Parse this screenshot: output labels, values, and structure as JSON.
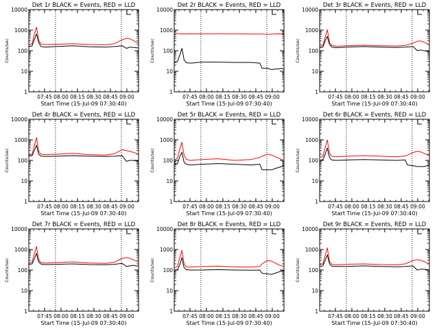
{
  "figure": {
    "start_time_label": "Start Time (15-Jul-09 07:30:40)",
    "ylabel": "Counts/sec",
    "x_tick_labels": [
      "07:45",
      "08:00",
      "08:15",
      "08:30",
      "08:45",
      "09:00"
    ],
    "y_tick_labels": [
      "1",
      "10",
      "100",
      "1000",
      "10000"
    ],
    "colors": {
      "events": "#000000",
      "lld": "#ff0000",
      "axis": "#000000"
    }
  },
  "chart_data": [
    {
      "type": "line",
      "title": "Det 1r BLACK = Events, RED = LLD",
      "xlabel": "Start Time (15-Jul-09 07:30:40)",
      "ylabel": "Counts/sec",
      "x_unit": "minutes after 07:30:40",
      "xlim": [
        0,
        100
      ],
      "ylim": [
        1,
        10000
      ],
      "yscale": "log",
      "markers": [
        {
          "type": "dotted-line",
          "x": 24.3
        },
        {
          "type": "dotted-line",
          "x": 84.3
        },
        {
          "type": "bracket",
          "x": 89.3
        }
      ],
      "x": [
        0,
        3,
        5,
        7,
        8,
        9,
        11,
        15,
        25,
        40,
        55,
        70,
        78,
        85,
        89,
        92,
        95,
        98,
        100
      ],
      "series": [
        {
          "name": "Events",
          "color": "#000000",
          "values": [
            160,
            170,
            350,
            650,
            420,
            250,
            160,
            150,
            160,
            175,
            155,
            150,
            160,
            175,
            130,
            150,
            145,
            140,
            135
          ]
        },
        {
          "name": "LLD",
          "color": "#ff0000",
          "values": [
            200,
            220,
            600,
            1400,
            700,
            320,
            210,
            200,
            205,
            220,
            200,
            195,
            220,
            340,
            400,
            380,
            320,
            260,
            230
          ]
        }
      ]
    },
    {
      "type": "line",
      "title": "Det 2r BLACK = Events, RED = LLD",
      "xlabel": "Start Time (15-Jul-09 07:30:40)",
      "ylabel": "Counts/sec",
      "x_unit": "minutes after 07:30:40",
      "xlim": [
        0,
        100
      ],
      "ylim": [
        1,
        10000
      ],
      "yscale": "log",
      "markers": [
        {
          "type": "dotted-line",
          "x": 24.3
        },
        {
          "type": "dotted-line",
          "x": 84.3
        },
        {
          "type": "bracket",
          "x": 89.3
        }
      ],
      "x": [
        0,
        3,
        5,
        7,
        8,
        9,
        11,
        15,
        25,
        40,
        55,
        70,
        78,
        80,
        85,
        89,
        92,
        95,
        98,
        100
      ],
      "series": [
        {
          "name": "Events",
          "color": "#000000",
          "values": [
            25,
            30,
            60,
            130,
            70,
            35,
            26,
            25,
            28,
            28,
            27,
            27,
            25,
            14,
            14,
            12,
            13,
            13,
            14,
            12
          ]
        },
        {
          "name": "LLD",
          "color": "#ff0000",
          "values": [
            700,
            680,
            660,
            660,
            660,
            650,
            660,
            670,
            660,
            670,
            660,
            650,
            650,
            650,
            620,
            640,
            650,
            660,
            650,
            640
          ]
        }
      ]
    },
    {
      "type": "line",
      "title": "Det 3r BLACK = Events, RED = LLD",
      "xlabel": "Start Time (15-Jul-09 07:30:40)",
      "ylabel": "Counts/sec",
      "x_unit": "minutes after 07:30:40",
      "xlim": [
        0,
        100
      ],
      "ylim": [
        1,
        10000
      ],
      "yscale": "log",
      "markers": [
        {
          "type": "dotted-line",
          "x": 24.3
        },
        {
          "type": "dotted-line",
          "x": 84.3
        },
        {
          "type": "bracket",
          "x": 89.3
        }
      ],
      "x": [
        0,
        3,
        5,
        7,
        8,
        9,
        11,
        15,
        25,
        40,
        55,
        70,
        78,
        85,
        89,
        92,
        95,
        98,
        100
      ],
      "series": [
        {
          "name": "Events",
          "color": "#000000",
          "values": [
            140,
            150,
            300,
            500,
            300,
            200,
            150,
            140,
            150,
            160,
            150,
            145,
            150,
            160,
            100,
            110,
            100,
            95,
            90
          ]
        },
        {
          "name": "LLD",
          "color": "#ff0000",
          "values": [
            160,
            180,
            450,
            1050,
            500,
            260,
            180,
            165,
            175,
            185,
            175,
            170,
            180,
            230,
            290,
            300,
            260,
            220,
            200
          ]
        }
      ]
    },
    {
      "type": "line",
      "title": "Det 4r BLACK = Events, RED = LLD",
      "xlabel": "Start Time (15-Jul-09 07:30:40)",
      "ylabel": "Counts/sec",
      "x_unit": "minutes after 07:30:40",
      "xlim": [
        0,
        100
      ],
      "ylim": [
        1,
        10000
      ],
      "yscale": "log",
      "markers": [
        {
          "type": "dotted-line",
          "x": 24.3
        },
        {
          "type": "dotted-line",
          "x": 84.3
        },
        {
          "type": "bracket",
          "x": 89.3
        }
      ],
      "x": [
        0,
        3,
        5,
        7,
        8,
        9,
        11,
        15,
        25,
        40,
        55,
        70,
        78,
        85,
        89,
        92,
        95,
        98,
        100
      ],
      "series": [
        {
          "name": "Events",
          "color": "#000000",
          "values": [
            160,
            170,
            300,
            550,
            320,
            200,
            160,
            155,
            160,
            170,
            160,
            155,
            160,
            170,
            90,
            100,
            100,
            95,
            90
          ]
        },
        {
          "name": "LLD",
          "color": "#ff0000",
          "values": [
            180,
            200,
            500,
            1300,
            600,
            280,
            200,
            190,
            200,
            220,
            190,
            180,
            210,
            330,
            300,
            280,
            250,
            220,
            200
          ]
        }
      ]
    },
    {
      "type": "line",
      "title": "Det 5r BLACK = Events, RED = LLD",
      "xlabel": "Start Time (15-Jul-09 07:30:40)",
      "ylabel": "Counts/sec",
      "x_unit": "minutes after 07:30:40",
      "xlim": [
        0,
        100
      ],
      "ylim": [
        1,
        10000
      ],
      "yscale": "log",
      "markers": [
        {
          "type": "dotted-line",
          "x": 24.3
        },
        {
          "type": "dotted-line",
          "x": 84.3
        },
        {
          "type": "bracket",
          "x": 89.3
        }
      ],
      "x": [
        0,
        3,
        5,
        7,
        8,
        9,
        11,
        15,
        25,
        40,
        55,
        70,
        78,
        80,
        85,
        89,
        92,
        95,
        98,
        100
      ],
      "series": [
        {
          "name": "Events",
          "color": "#000000",
          "values": [
            60,
            70,
            150,
            250,
            140,
            80,
            65,
            60,
            65,
            70,
            65,
            60,
            65,
            35,
            35,
            35,
            40,
            45,
            50,
            60
          ]
        },
        {
          "name": "LLD",
          "color": "#ff0000",
          "values": [
            100,
            130,
            350,
            750,
            350,
            180,
            110,
            100,
            110,
            120,
            100,
            110,
            140,
            160,
            200,
            180,
            150,
            130,
            110,
            100
          ]
        }
      ]
    },
    {
      "type": "line",
      "title": "Det 6r BLACK = Events, RED = LLD",
      "xlabel": "Start Time (15-Jul-09 07:30:40)",
      "ylabel": "Counts/sec",
      "x_unit": "minutes after 07:30:40",
      "xlim": [
        0,
        100
      ],
      "ylim": [
        1,
        10000
      ],
      "yscale": "log",
      "markers": [
        {
          "type": "dotted-line",
          "x": 24.3
        },
        {
          "type": "dotted-line",
          "x": 84.3
        },
        {
          "type": "bracket",
          "x": 89.3
        }
      ],
      "x": [
        0,
        3,
        5,
        7,
        8,
        9,
        11,
        15,
        25,
        40,
        55,
        70,
        78,
        80,
        85,
        89,
        92,
        95,
        98,
        100
      ],
      "series": [
        {
          "name": "Events",
          "color": "#000000",
          "values": [
            100,
            110,
            200,
            400,
            220,
            140,
            105,
            100,
            105,
            110,
            105,
            100,
            105,
            60,
            55,
            50,
            50,
            50,
            55,
            60
          ]
        },
        {
          "name": "LLD",
          "color": "#ff0000",
          "values": [
            140,
            160,
            400,
            1000,
            450,
            220,
            160,
            150,
            160,
            170,
            160,
            150,
            165,
            180,
            240,
            280,
            260,
            220,
            190,
            160
          ]
        }
      ]
    },
    {
      "type": "line",
      "title": "Det 7r BLACK = Events, RED = LLD",
      "xlabel": "Start Time (15-Jul-09 07:30:40)",
      "ylabel": "Counts/sec",
      "x_unit": "minutes after 07:30:40",
      "xlim": [
        0,
        100
      ],
      "ylim": [
        1,
        10000
      ],
      "yscale": "log",
      "markers": [
        {
          "type": "dotted-line",
          "x": 24.3
        },
        {
          "type": "dotted-line",
          "x": 84.3
        },
        {
          "type": "bracket",
          "x": 89.3
        }
      ],
      "x": [
        0,
        3,
        5,
        7,
        8,
        9,
        11,
        15,
        25,
        40,
        55,
        70,
        78,
        85,
        89,
        92,
        95,
        98,
        100
      ],
      "series": [
        {
          "name": "Events",
          "color": "#000000",
          "values": [
            190,
            200,
            350,
            650,
            380,
            250,
            195,
            185,
            190,
            200,
            185,
            180,
            190,
            210,
            150,
            160,
            170,
            160,
            150
          ]
        },
        {
          "name": "LLD",
          "color": "#ff0000",
          "values": [
            220,
            250,
            600,
            1400,
            650,
            320,
            230,
            220,
            230,
            250,
            220,
            210,
            240,
            370,
            400,
            380,
            320,
            270,
            240
          ]
        }
      ]
    },
    {
      "type": "line",
      "title": "Det 8r BLACK = Events, RED = LLD",
      "xlabel": "Start Time (15-Jul-09 07:30:40)",
      "ylabel": "Counts/sec",
      "x_unit": "minutes after 07:30:40",
      "xlim": [
        0,
        100
      ],
      "ylim": [
        1,
        10000
      ],
      "yscale": "log",
      "markers": [
        {
          "type": "dotted-line",
          "x": 24.3
        },
        {
          "type": "dotted-line",
          "x": 84.3
        },
        {
          "type": "bracket",
          "x": 89.3
        }
      ],
      "x": [
        0,
        3,
        5,
        7,
        8,
        9,
        11,
        15,
        25,
        40,
        55,
        70,
        78,
        80,
        85,
        89,
        92,
        95,
        98,
        100
      ],
      "series": [
        {
          "name": "Events",
          "color": "#000000",
          "values": [
            100,
            105,
            180,
            400,
            220,
            130,
            105,
            100,
            100,
            105,
            100,
            98,
            100,
            70,
            65,
            62,
            70,
            80,
            90,
            100
          ]
        },
        {
          "name": "LLD",
          "color": "#ff0000",
          "values": [
            130,
            150,
            400,
            900,
            420,
            200,
            145,
            140,
            150,
            155,
            145,
            140,
            150,
            200,
            290,
            270,
            220,
            180,
            160,
            140
          ]
        }
      ]
    },
    {
      "type": "line",
      "title": "Det 9r BLACK = Events, RED = LLD",
      "xlabel": "Start Time (15-Jul-09 07:30:40)",
      "ylabel": "Counts/sec",
      "x_unit": "minutes after 07:30:40",
      "xlim": [
        0,
        100
      ],
      "ylim": [
        1,
        10000
      ],
      "yscale": "log",
      "markers": [
        {
          "type": "dotted-line",
          "x": 24.3
        },
        {
          "type": "dotted-line",
          "x": 84.3
        },
        {
          "type": "bracket",
          "x": 89.3
        }
      ],
      "x": [
        0,
        3,
        5,
        7,
        8,
        9,
        11,
        15,
        25,
        40,
        55,
        70,
        78,
        85,
        89,
        92,
        95,
        98,
        100
      ],
      "series": [
        {
          "name": "Events",
          "color": "#000000",
          "values": [
            150,
            160,
            300,
            550,
            320,
            200,
            155,
            150,
            150,
            160,
            150,
            145,
            150,
            160,
            100,
            110,
            110,
            105,
            100
          ]
        },
        {
          "name": "LLD",
          "color": "#ff0000",
          "values": [
            180,
            200,
            500,
            1200,
            550,
            260,
            190,
            180,
            190,
            200,
            185,
            180,
            200,
            290,
            320,
            300,
            260,
            220,
            200
          ]
        }
      ]
    }
  ]
}
